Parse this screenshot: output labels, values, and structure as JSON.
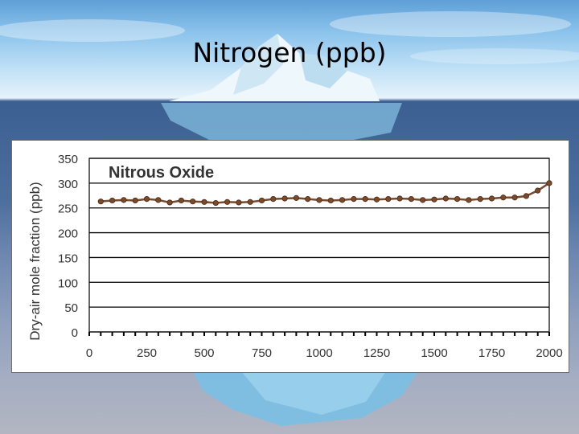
{
  "slide": {
    "title": "Nitrogen (ppb)"
  },
  "chart_data": {
    "type": "line",
    "title": "Nitrous Oxide",
    "xlabel": "",
    "ylabel": "Dry-air mole fraction (ppb)",
    "xlim": [
      0,
      2000
    ],
    "ylim": [
      0,
      350
    ],
    "xticks": [
      0,
      250,
      500,
      750,
      1000,
      1250,
      1500,
      1750,
      2000
    ],
    "yticks": [
      0,
      50,
      100,
      150,
      200,
      250,
      300,
      350
    ],
    "grid": true,
    "series": [
      {
        "name": "",
        "color": "#7a4a2c",
        "x": [
          50,
          100,
          150,
          200,
          250,
          300,
          350,
          400,
          450,
          500,
          550,
          600,
          650,
          700,
          750,
          800,
          850,
          900,
          950,
          1000,
          1050,
          1100,
          1150,
          1200,
          1250,
          1300,
          1350,
          1400,
          1450,
          1500,
          1550,
          1600,
          1650,
          1700,
          1750,
          1800,
          1850,
          1900,
          1950,
          2000
        ],
        "y": [
          263,
          265,
          266,
          265,
          268,
          266,
          261,
          265,
          263,
          262,
          260,
          262,
          261,
          262,
          265,
          268,
          269,
          270,
          268,
          266,
          265,
          266,
          268,
          268,
          267,
          268,
          269,
          268,
          266,
          267,
          269,
          268,
          266,
          268,
          269,
          271,
          271,
          274,
          285,
          300
        ]
      }
    ]
  }
}
